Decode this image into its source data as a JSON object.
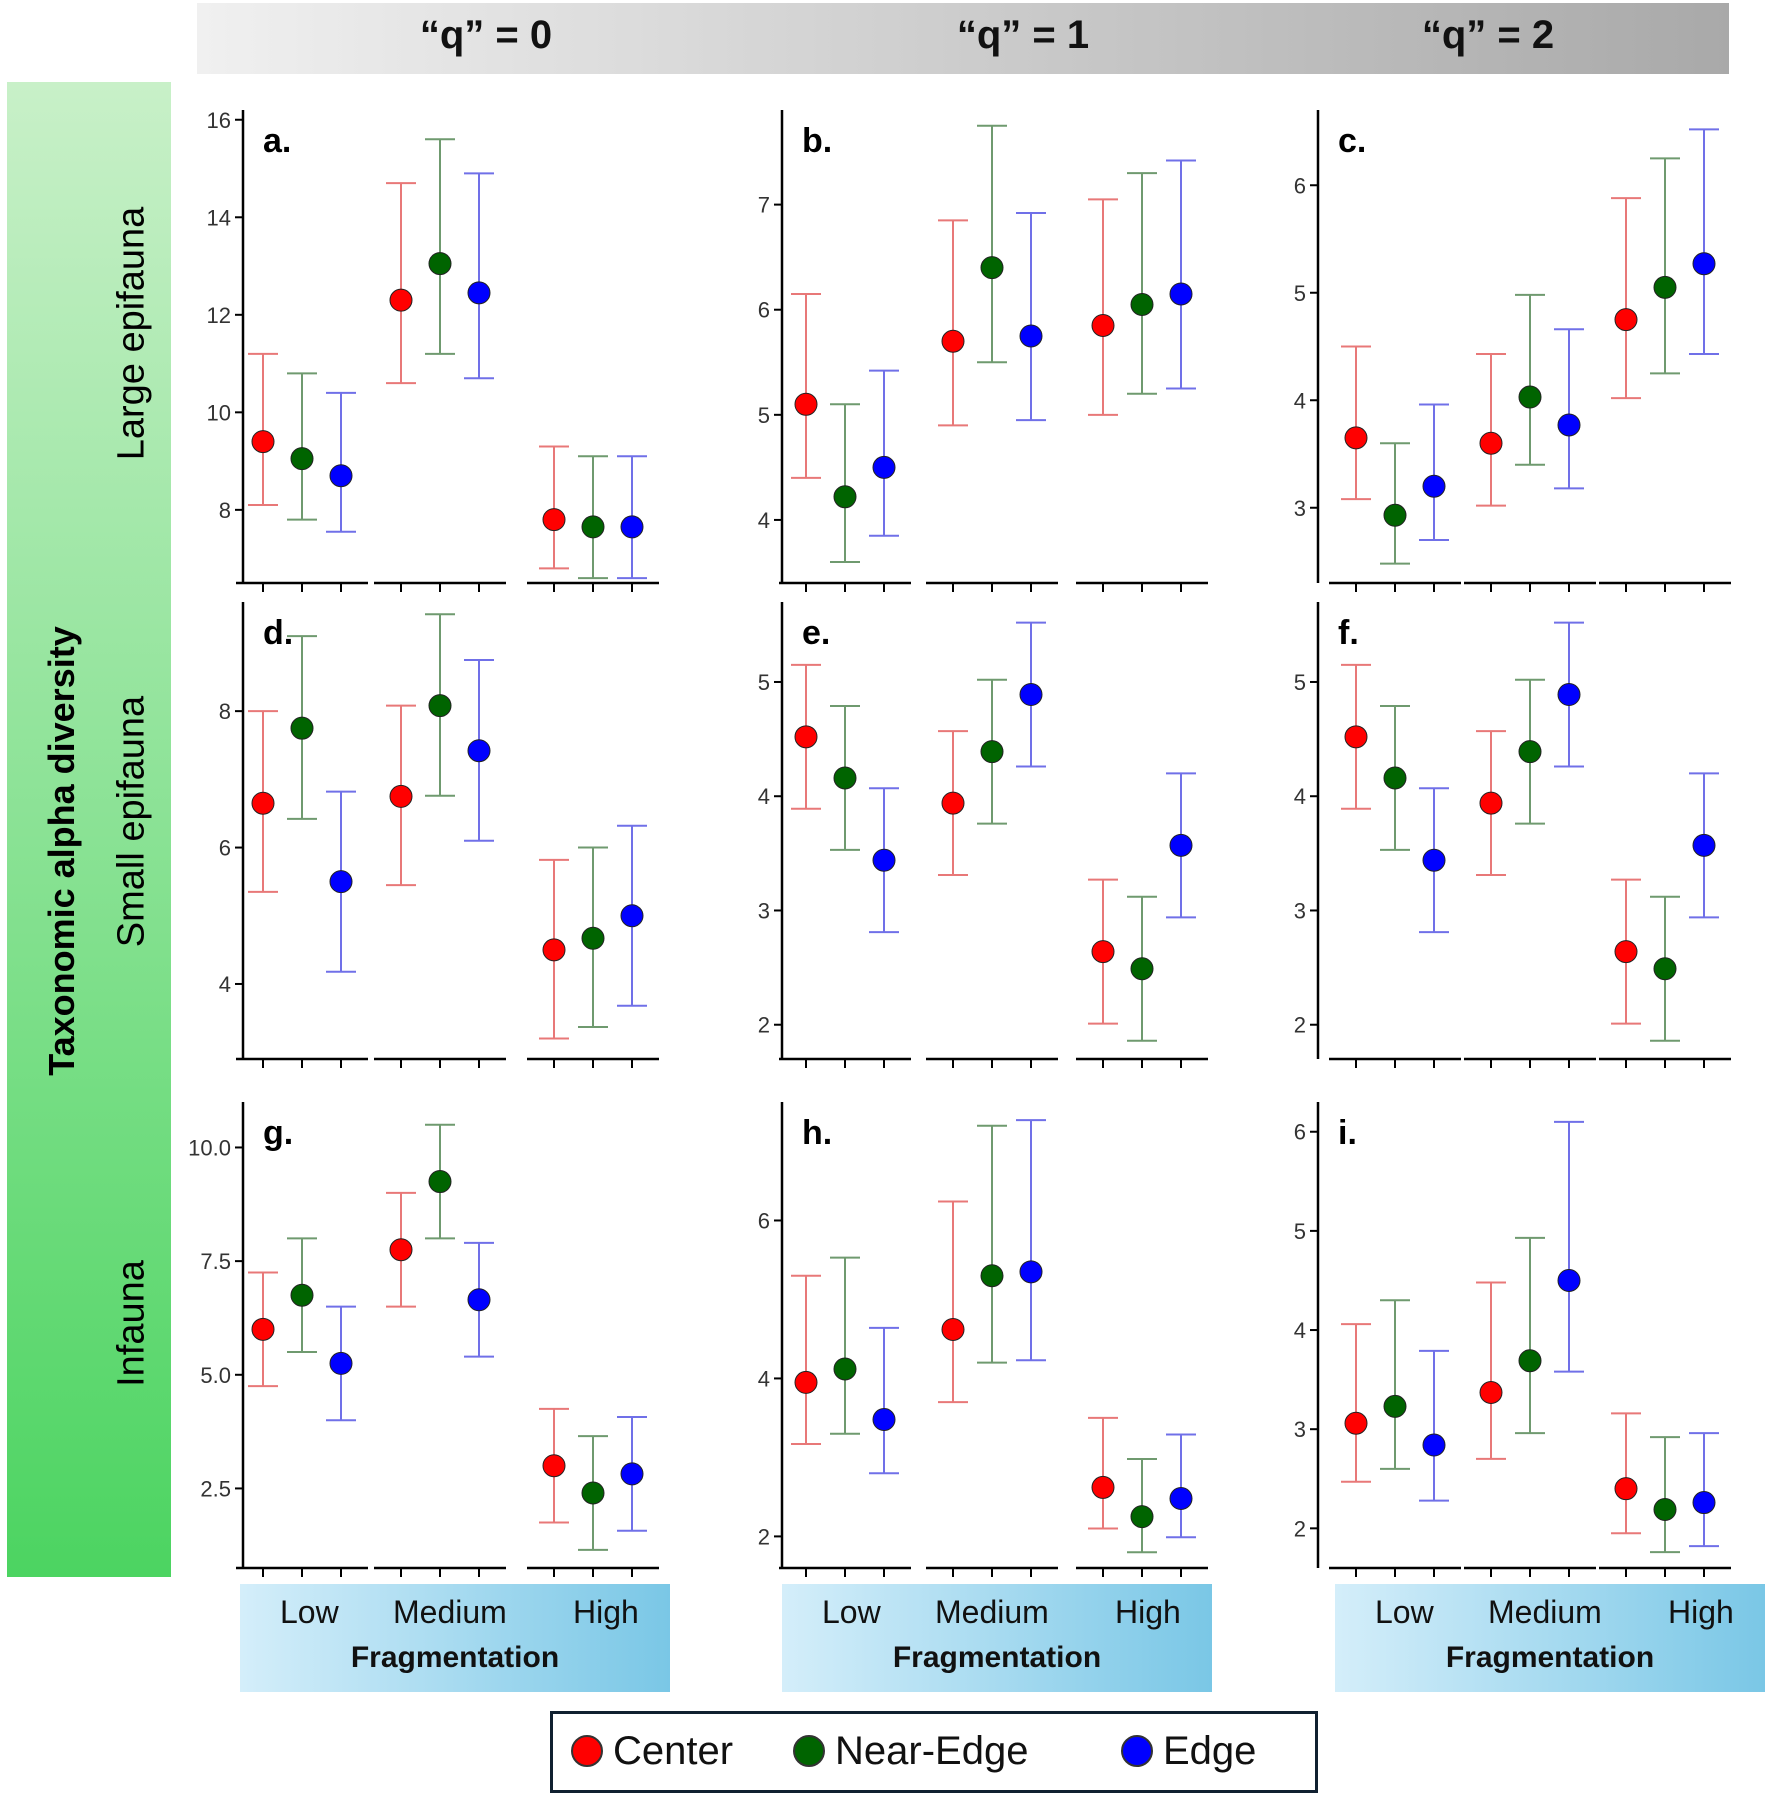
{
  "col_headers": [
    "“q” = 0",
    "“q” = 1",
    "“q” = 2"
  ],
  "y_title": "Taxonomic alpha diversity",
  "row_titles": [
    "Large epifauna",
    "Small epifauna",
    "Infauna"
  ],
  "x_axis": {
    "title": "Fragmentation",
    "levels": [
      "Low",
      "Medium",
      "High"
    ]
  },
  "legend": [
    {
      "label": "Center",
      "color": "#ff0000"
    },
    {
      "label": "Near-Edge",
      "color": "#006400"
    },
    {
      "label": "Edge",
      "color": "#0000ff"
    }
  ],
  "colors": {
    "Center": "#ff0000",
    "Near-Edge": "#006400",
    "Edge": "#0000ff",
    "Center_bar": "#e87878",
    "Near-Edge_bar": "#6f9a6f",
    "Edge_bar": "#7070e8"
  },
  "chart_data": [
    {
      "type": "scatter",
      "panel": "a.",
      "row": "Large epifauna",
      "q": "“q” = 0",
      "ylim": [
        6.5,
        16.2
      ],
      "yticks": [
        8,
        10,
        12,
        14,
        16
      ],
      "ytick_labels": [
        "8",
        "10",
        "12",
        "14",
        "16"
      ],
      "categories": [
        "Low",
        "Medium",
        "High"
      ],
      "series": [
        {
          "name": "Center",
          "values": [
            9.4,
            12.3,
            7.8
          ],
          "lower": [
            8.1,
            10.6,
            6.8
          ],
          "upper": [
            11.2,
            14.7,
            9.3
          ]
        },
        {
          "name": "Near-Edge",
          "values": [
            9.05,
            13.05,
            7.65
          ],
          "lower": [
            7.8,
            11.2,
            6.6
          ],
          "upper": [
            10.8,
            15.6,
            9.1
          ]
        },
        {
          "name": "Edge",
          "values": [
            8.7,
            12.45,
            7.65
          ],
          "lower": [
            7.55,
            10.7,
            6.6
          ],
          "upper": [
            10.4,
            14.9,
            9.1
          ]
        }
      ]
    },
    {
      "type": "scatter",
      "panel": "b.",
      "row": "Large epifauna",
      "q": "“q” = 1",
      "ylim": [
        3.4,
        7.9
      ],
      "yticks": [
        4,
        5,
        6,
        7
      ],
      "ytick_labels": [
        "4",
        "5",
        "6",
        "7"
      ],
      "categories": [
        "Low",
        "Medium",
        "High"
      ],
      "series": [
        {
          "name": "Center",
          "values": [
            5.1,
            5.7,
            5.85
          ],
          "lower": [
            4.4,
            4.9,
            5.0
          ],
          "upper": [
            6.15,
            6.85,
            7.05
          ]
        },
        {
          "name": "Near-Edge",
          "values": [
            4.22,
            6.4,
            6.05
          ],
          "lower": [
            3.6,
            5.5,
            5.2
          ],
          "upper": [
            5.1,
            7.75,
            7.3
          ]
        },
        {
          "name": "Edge",
          "values": [
            4.5,
            5.75,
            6.15
          ],
          "lower": [
            3.85,
            4.95,
            5.25
          ],
          "upper": [
            5.42,
            6.92,
            7.42
          ]
        }
      ]
    },
    {
      "type": "scatter",
      "panel": "c.",
      "row": "Large epifauna",
      "q": "“q” = 2",
      "ylim": [
        2.3,
        6.7
      ],
      "yticks": [
        3,
        4,
        5,
        6
      ],
      "ytick_labels": [
        "3",
        "4",
        "5",
        "6"
      ],
      "categories": [
        "Low",
        "Medium",
        "High"
      ],
      "series": [
        {
          "name": "Center",
          "values": [
            3.65,
            3.6,
            4.75
          ],
          "lower": [
            3.08,
            3.02,
            4.02
          ],
          "upper": [
            4.5,
            4.43,
            5.88
          ]
        },
        {
          "name": "Near-Edge",
          "values": [
            2.93,
            4.03,
            5.05
          ],
          "lower": [
            2.48,
            3.4,
            4.25
          ],
          "upper": [
            3.6,
            4.98,
            6.25
          ]
        },
        {
          "name": "Edge",
          "values": [
            3.2,
            3.77,
            5.27
          ],
          "lower": [
            2.7,
            3.18,
            4.43
          ],
          "upper": [
            3.96,
            4.66,
            6.52
          ]
        }
      ]
    },
    {
      "type": "scatter",
      "panel": "d.",
      "row": "Small epifauna",
      "q": "“q” = 0",
      "ylim": [
        2.9,
        9.6
      ],
      "yticks": [
        4,
        6,
        8
      ],
      "ytick_labels": [
        "4",
        "6",
        "8"
      ],
      "categories": [
        "Low",
        "Medium",
        "High"
      ],
      "series": [
        {
          "name": "Center",
          "values": [
            6.65,
            6.75,
            4.5
          ],
          "lower": [
            5.35,
            5.45,
            3.2
          ],
          "upper": [
            8.0,
            8.08,
            5.82
          ]
        },
        {
          "name": "Near-Edge",
          "values": [
            7.75,
            8.08,
            4.67
          ],
          "lower": [
            6.42,
            6.76,
            3.37
          ],
          "upper": [
            9.1,
            9.42,
            6.0
          ]
        },
        {
          "name": "Edge",
          "values": [
            5.5,
            7.42,
            5.0
          ],
          "lower": [
            4.18,
            6.1,
            3.68
          ],
          "upper": [
            6.82,
            8.75,
            6.32
          ]
        }
      ]
    },
    {
      "type": "scatter",
      "panel": "e.",
      "row": "Small epifauna",
      "q": "“q” = 1",
      "ylim": [
        1.7,
        5.7
      ],
      "yticks": [
        2,
        3,
        4,
        5
      ],
      "ytick_labels": [
        "2",
        "3",
        "4",
        "5"
      ],
      "categories": [
        "Low",
        "Medium",
        "High"
      ],
      "series": [
        {
          "name": "Center",
          "values": [
            4.52,
            3.94,
            2.64
          ],
          "lower": [
            3.89,
            3.31,
            2.01
          ],
          "upper": [
            5.15,
            4.57,
            3.27
          ]
        },
        {
          "name": "Near-Edge",
          "values": [
            4.16,
            4.39,
            2.49
          ],
          "lower": [
            3.53,
            3.76,
            1.86
          ],
          "upper": [
            4.79,
            5.02,
            3.12
          ]
        },
        {
          "name": "Edge",
          "values": [
            3.44,
            4.89,
            3.57
          ],
          "lower": [
            2.81,
            4.26,
            2.94
          ],
          "upper": [
            4.07,
            5.52,
            4.2
          ]
        }
      ]
    },
    {
      "type": "scatter",
      "panel": "f.",
      "row": "Small epifauna",
      "q": "“q” = 2",
      "ylim": [
        1.7,
        5.7
      ],
      "yticks": [
        2,
        3,
        4,
        5
      ],
      "ytick_labels": [
        "2",
        "3",
        "4",
        "5"
      ],
      "categories": [
        "Low",
        "Medium",
        "High"
      ],
      "series": [
        {
          "name": "Center",
          "values": [
            4.52,
            3.94,
            2.64
          ],
          "lower": [
            3.89,
            3.31,
            2.01
          ],
          "upper": [
            5.15,
            4.57,
            3.27
          ]
        },
        {
          "name": "Near-Edge",
          "values": [
            4.16,
            4.39,
            2.49
          ],
          "lower": [
            3.53,
            3.76,
            1.86
          ],
          "upper": [
            4.79,
            5.02,
            3.12
          ]
        },
        {
          "name": "Edge",
          "values": [
            3.44,
            4.89,
            3.57
          ],
          "lower": [
            2.81,
            4.26,
            2.94
          ],
          "upper": [
            4.07,
            5.52,
            4.2
          ]
        }
      ]
    },
    {
      "type": "scatter",
      "panel": "g.",
      "row": "Infauna",
      "q": "“q” = 0",
      "ylim": [
        0.75,
        11.0
      ],
      "yticks": [
        2.5,
        5.0,
        7.5,
        10.0
      ],
      "ytick_labels": [
        "2.5",
        "5.0",
        "7.5",
        "10.0"
      ],
      "categories": [
        "Low",
        "Medium",
        "High"
      ],
      "series": [
        {
          "name": "Center",
          "values": [
            6.0,
            7.75,
            3.0
          ],
          "lower": [
            4.75,
            6.5,
            1.75
          ],
          "upper": [
            7.25,
            9.0,
            4.25
          ]
        },
        {
          "name": "Near-Edge",
          "values": [
            6.75,
            9.25,
            2.4
          ],
          "lower": [
            5.5,
            8.0,
            1.15
          ],
          "upper": [
            8.0,
            10.5,
            3.65
          ]
        },
        {
          "name": "Edge",
          "values": [
            5.25,
            6.65,
            2.82
          ],
          "lower": [
            4.0,
            5.4,
            1.57
          ],
          "upper": [
            6.5,
            7.9,
            4.07
          ]
        }
      ]
    },
    {
      "type": "scatter",
      "panel": "h.",
      "row": "Infauna",
      "q": "“q” = 1",
      "ylim": [
        1.6,
        7.5
      ],
      "yticks": [
        2,
        4,
        6
      ],
      "ytick_labels": [
        "2",
        "4",
        "6"
      ],
      "categories": [
        "Low",
        "Medium",
        "High"
      ],
      "series": [
        {
          "name": "Center",
          "values": [
            3.95,
            4.62,
            2.62
          ],
          "lower": [
            3.17,
            3.7,
            2.1
          ],
          "upper": [
            5.3,
            6.24,
            3.5
          ]
        },
        {
          "name": "Near-Edge",
          "values": [
            4.12,
            5.3,
            2.25
          ],
          "lower": [
            3.3,
            4.2,
            1.8
          ],
          "upper": [
            5.53,
            7.2,
            2.98
          ]
        },
        {
          "name": "Edge",
          "values": [
            3.48,
            5.35,
            2.48
          ],
          "lower": [
            2.8,
            4.23,
            1.99
          ],
          "upper": [
            4.64,
            7.27,
            3.29
          ]
        }
      ]
    },
    {
      "type": "scatter",
      "panel": "i.",
      "row": "Infauna",
      "q": "“q” = 2",
      "ylim": [
        1.6,
        6.3
      ],
      "yticks": [
        2,
        3,
        4,
        5,
        6
      ],
      "ytick_labels": [
        "2",
        "3",
        "4",
        "5",
        "6"
      ],
      "categories": [
        "Low",
        "Medium",
        "High"
      ],
      "series": [
        {
          "name": "Center",
          "values": [
            3.06,
            3.37,
            2.4
          ],
          "lower": [
            2.47,
            2.7,
            1.95
          ],
          "upper": [
            4.06,
            4.48,
            3.16
          ]
        },
        {
          "name": "Near-Edge",
          "values": [
            3.23,
            3.69,
            2.19
          ],
          "lower": [
            2.6,
            2.96,
            1.76
          ],
          "upper": [
            4.3,
            4.93,
            2.92
          ]
        },
        {
          "name": "Edge",
          "values": [
            2.84,
            4.5,
            2.26
          ],
          "lower": [
            2.28,
            3.58,
            1.82
          ],
          "upper": [
            3.79,
            6.1,
            2.96
          ]
        }
      ]
    }
  ]
}
